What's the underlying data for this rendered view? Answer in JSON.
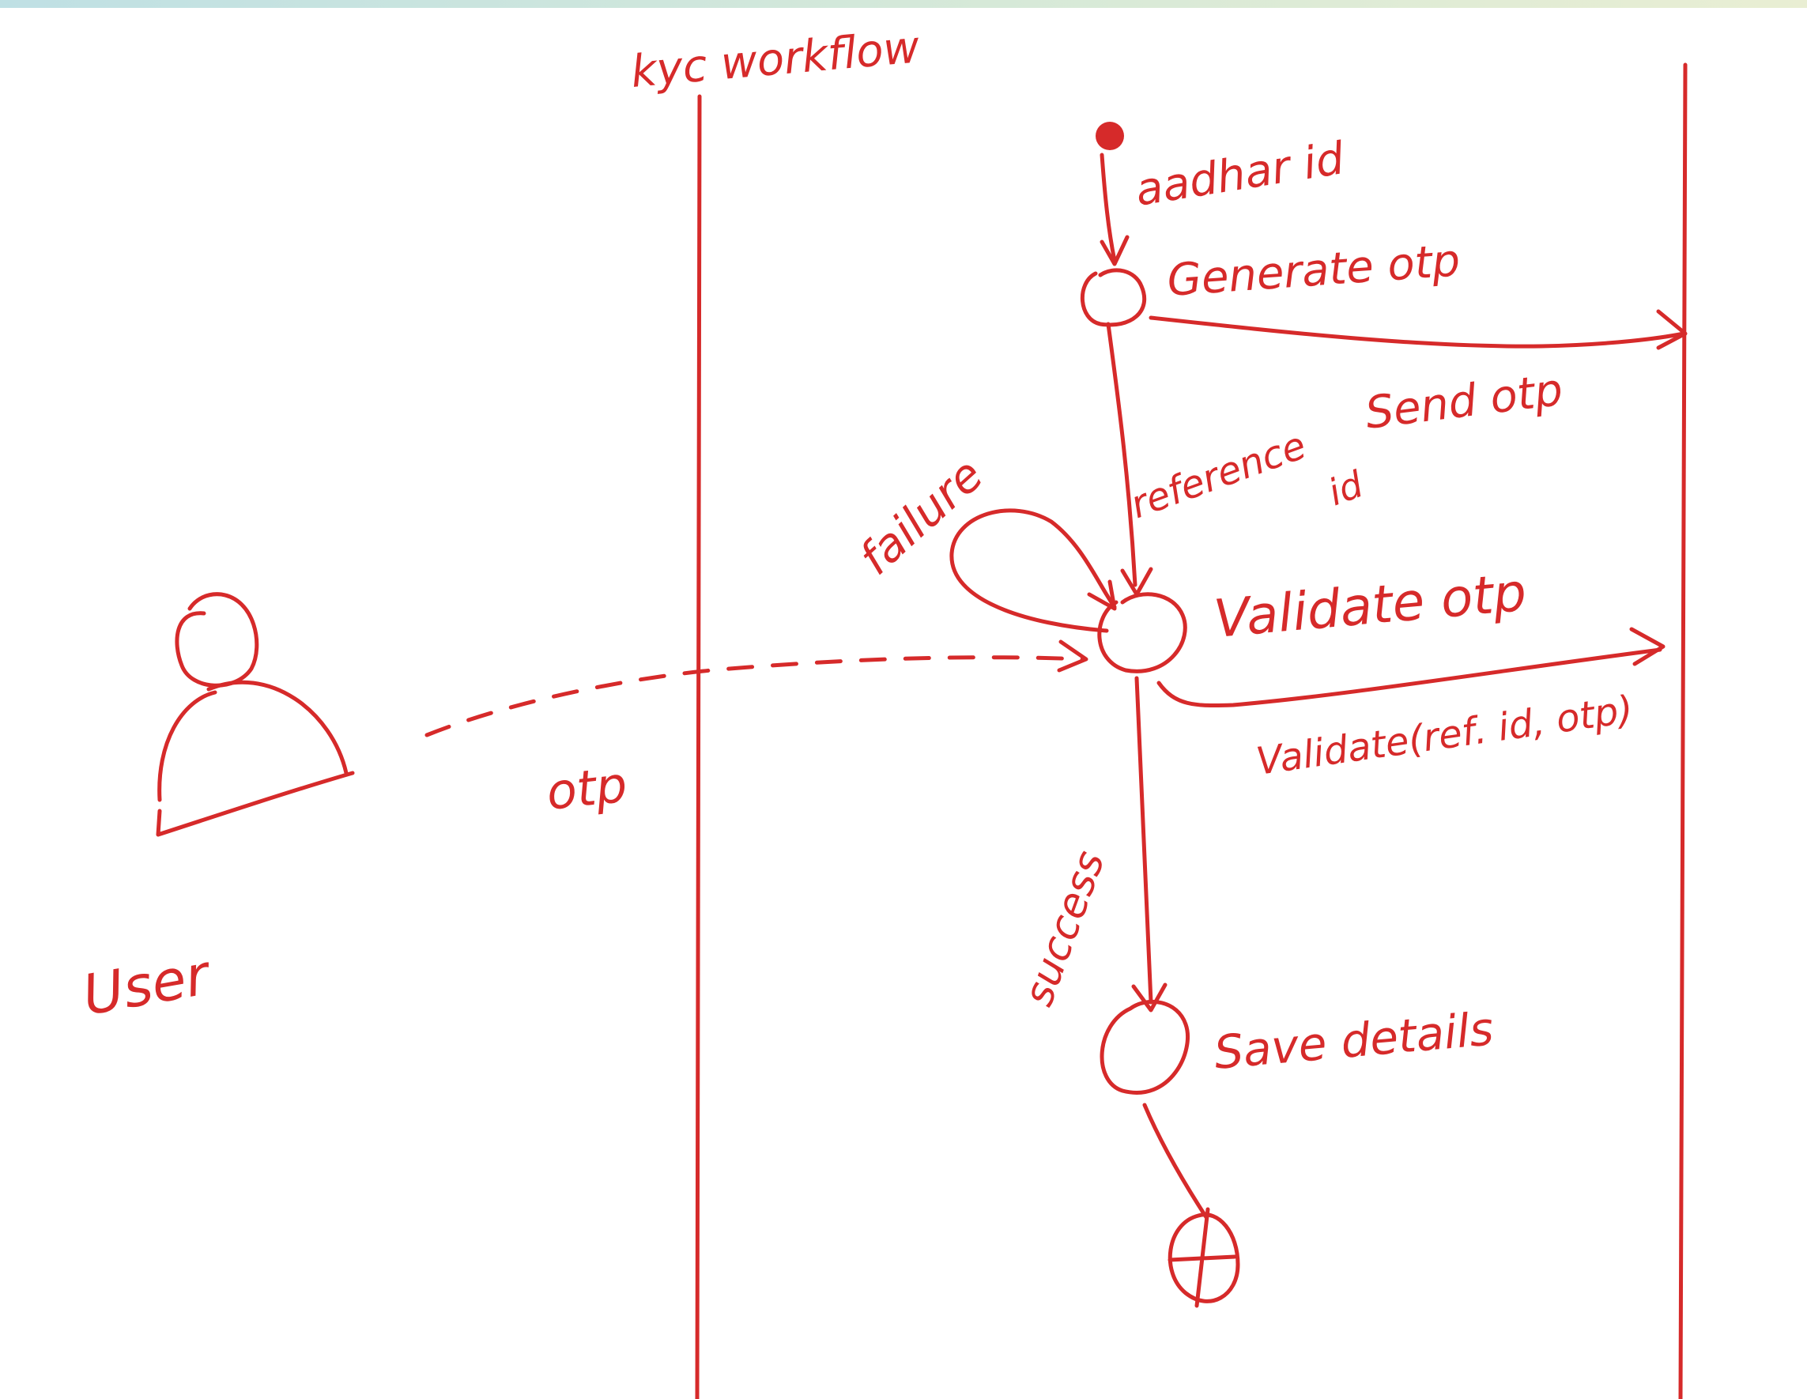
{
  "colors": {
    "ink": "#d62a2a",
    "background": "#ffffff"
  },
  "swimlane": {
    "title": "kyc workflow"
  },
  "actor": {
    "icon": "user-icon",
    "label": "User"
  },
  "input_label": "aadhar id",
  "nodes": {
    "generate": "Generate otp",
    "validate": "Validate otp",
    "save": "Save details"
  },
  "edges": {
    "send_otp": "Send otp",
    "reference_id": "reference",
    "reference_id_suffix": "id",
    "failure": "failure",
    "validate_call": "Validate(ref. id, otp)",
    "success": "success",
    "user_otp": "otp"
  }
}
